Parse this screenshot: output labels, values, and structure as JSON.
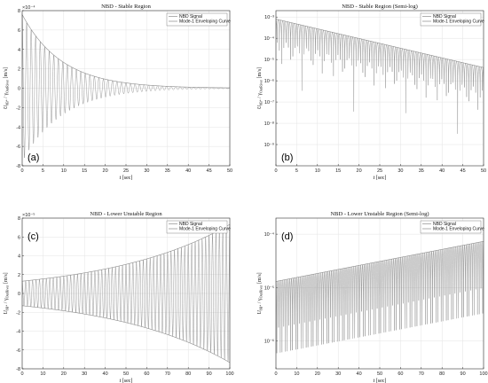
{
  "chart_data": [
    {
      "type": "line",
      "panel_label": "(a)",
      "title": "NBD - Stable Region",
      "xlabel": "t [sec]",
      "ylabel": "U_{\\theta_{B^{*}}} / \\gamma_{OutRiver} [\\frac{m}{s}]",
      "y_exponent": "×10⁻⁴",
      "xlim": [
        0,
        50
      ],
      "ylim": [
        -8,
        8
      ],
      "xticks": [
        "0",
        "5",
        "10",
        "15",
        "20",
        "25",
        "30",
        "35",
        "40",
        "45",
        "50"
      ],
      "yticks": [
        "8",
        "6",
        "4",
        "2",
        "0",
        "-2",
        "-4",
        "-6",
        "-8"
      ],
      "yscale": "linear",
      "grid": true,
      "legend_position": "top-right",
      "series": [
        {
          "name": "NBD Signal",
          "kind": "oscillation",
          "amplitude_start": 7.6,
          "envelope": "decay",
          "decay_rate": 0.105,
          "freq_hz": 0.92,
          "color": "#8c8c8c"
        },
        {
          "name": "Mode-1 Enveloping Curve",
          "kind": "envelope",
          "amplitude_start": 7.6,
          "decay_rate": 0.105,
          "color": "#8c8c8c"
        }
      ]
    },
    {
      "type": "line",
      "panel_label": "(b)",
      "title": "NBD - Stable Region (Semi-log)",
      "xlabel": "t [sec]",
      "ylabel": "U_{\\theta_{B^{*}}} / \\gamma_{OutRiver} [\\frac{m}{s}]",
      "xlim": [
        0,
        50
      ],
      "ylim": [
        1e-10,
        0.002
      ],
      "xticks": [
        "0",
        "5",
        "10",
        "15",
        "20",
        "25",
        "30",
        "35",
        "40",
        "45",
        "50"
      ],
      "yticks": [
        "10⁻³",
        "10⁻⁴",
        "10⁻⁵",
        "10⁻⁶",
        "10⁻⁷",
        "10⁻⁸",
        "10⁻⁹"
      ],
      "yscale": "log",
      "grid": true,
      "legend_position": "top-right",
      "series": [
        {
          "name": "NBD Signal",
          "kind": "abs-oscillation",
          "amplitude_start": 0.0008,
          "envelope": "decay",
          "decay_rate": 0.105,
          "freq_hz": 0.92,
          "color": "#8c8c8c"
        },
        {
          "name": "Mode-1 Enveloping Curve",
          "kind": "envelope",
          "amplitude_start": 0.0008,
          "decay_rate": 0.105,
          "color": "#8c8c8c"
        }
      ]
    },
    {
      "type": "line",
      "panel_label": "(c)",
      "title": "NBD - Lower Unstable Region",
      "xlabel": "t [sec]",
      "ylabel": "U_{\\theta_{B^{*}}} / \\gamma_{OutRiver} [\\frac{m}{s}]",
      "y_exponent": "×10⁻⁵",
      "xlim": [
        0,
        100
      ],
      "ylim": [
        -8,
        8
      ],
      "xticks": [
        "0",
        "10",
        "20",
        "30",
        "40",
        "50",
        "60",
        "70",
        "80",
        "90",
        "100"
      ],
      "yticks": [
        "8",
        "6",
        "4",
        "2",
        "0",
        "-2",
        "-4",
        "-6",
        "-8"
      ],
      "yscale": "linear",
      "grid": true,
      "legend_position": "top-right",
      "series": [
        {
          "name": "NBD Signal",
          "kind": "oscillation",
          "amplitude_start": 1.3,
          "envelope": "growth",
          "decay_rate": -0.0173,
          "freq_hz": 0.6,
          "color": "#8c8c8c"
        },
        {
          "name": "Mode-1 Enveloping Curve",
          "kind": "envelope",
          "amplitude_start": 1.3,
          "decay_rate": -0.0173,
          "color": "#8c8c8c"
        }
      ]
    },
    {
      "type": "line",
      "panel_label": "(d)",
      "title": "NBD - Lower Unstable Region (Semi-log)",
      "xlabel": "t [sec]",
      "ylabel": "U_{\\theta_{B^{*}}} / \\gamma_{OutRiver} [\\frac{m}{s}]",
      "xlim": [
        0,
        100
      ],
      "ylim": [
        3e-07,
        0.0002
      ],
      "xticks": [
        "0",
        "10",
        "20",
        "30",
        "40",
        "50",
        "60",
        "70",
        "80",
        "90",
        "100"
      ],
      "yticks": [
        "10⁻⁴",
        "10⁻⁵",
        "10⁻⁶"
      ],
      "yscale": "log",
      "grid": true,
      "legend_position": "top-right",
      "series": [
        {
          "name": "NBD Signal",
          "kind": "abs-oscillation",
          "amplitude_start": 1.3e-05,
          "envelope": "growth",
          "decay_rate": -0.0173,
          "freq_hz": 0.6,
          "color": "#8c8c8c"
        },
        {
          "name": "Mode-1 Enveloping Curve",
          "kind": "envelope",
          "amplitude_start": 1.3e-05,
          "decay_rate": -0.0173,
          "color": "#8c8c8c"
        }
      ]
    }
  ]
}
